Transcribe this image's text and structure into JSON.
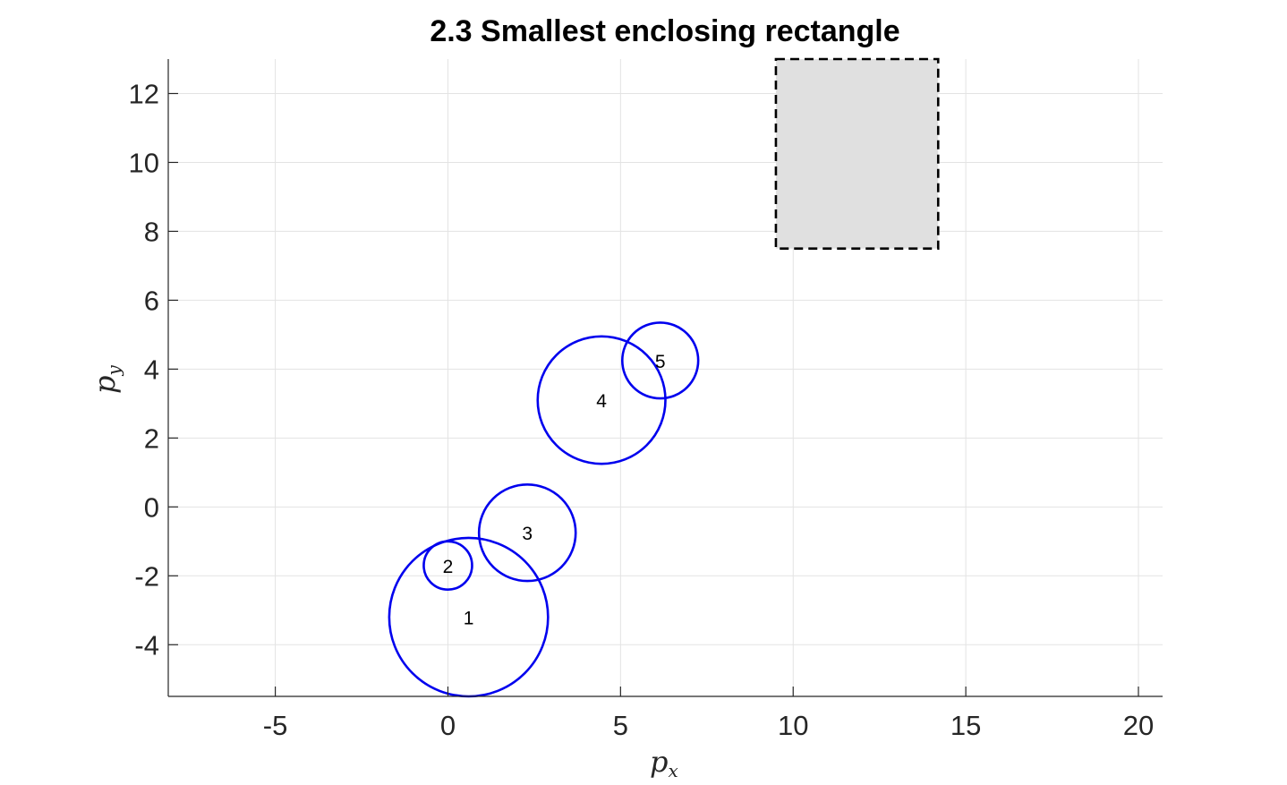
{
  "chart_data": {
    "type": "scatter",
    "title": "2.3 Smallest enclosing rectangle",
    "xlabel": "p",
    "xlabel_sub": "x",
    "ylabel": "p",
    "ylabel_sub": "y",
    "xlim": [
      -8.1,
      20.7
    ],
    "ylim": [
      -5.5,
      13.0
    ],
    "xticks": [
      -5,
      0,
      5,
      10,
      15,
      20
    ],
    "xtick_labels": [
      "-5",
      "0",
      "5",
      "10",
      "15",
      "20"
    ],
    "yticks": [
      -4,
      -2,
      0,
      2,
      4,
      6,
      8,
      10,
      12
    ],
    "ytick_labels": [
      "-4",
      "-2",
      "0",
      "2",
      "4",
      "6",
      "8",
      "10",
      "12"
    ],
    "grid": true,
    "circles": [
      {
        "label": "1",
        "cx": 0.6,
        "cy": -3.2,
        "r": 2.3
      },
      {
        "label": "2",
        "cx": 0.0,
        "cy": -1.7,
        "r": 0.7
      },
      {
        "label": "3",
        "cx": 2.3,
        "cy": -0.75,
        "r": 1.4
      },
      {
        "label": "4",
        "cx": 4.45,
        "cy": 3.1,
        "r": 1.85
      },
      {
        "label": "5",
        "cx": 6.15,
        "cy": 4.25,
        "r": 1.1
      }
    ],
    "rectangle": {
      "x_min": 9.5,
      "x_max": 14.2,
      "y_min": 7.5,
      "y_max": 13.0
    },
    "circle_color": "#0000ee",
    "rectangle_fill": "#e0e0e0",
    "rectangle_edge": "#000000"
  }
}
